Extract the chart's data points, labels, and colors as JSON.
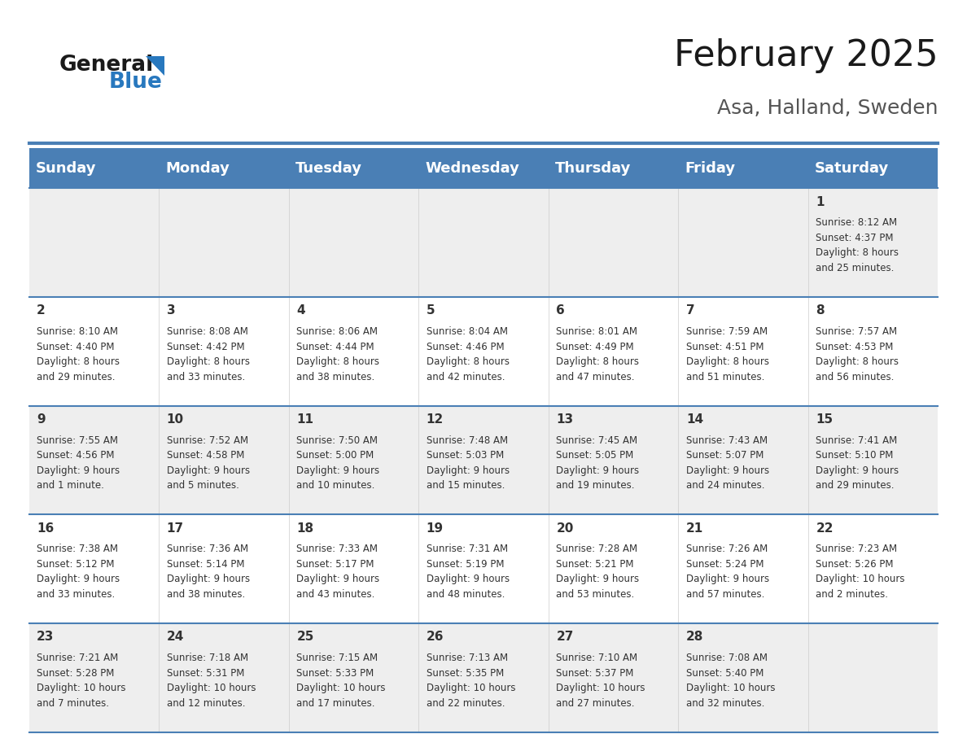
{
  "title": "February 2025",
  "subtitle": "Asa, Halland, Sweden",
  "header_bg_color": "#4a7fb5",
  "header_text_color": "#ffffff",
  "bg_color": "#ffffff",
  "row0_bg": "#eeeeee",
  "row1_bg": "#ffffff",
  "border_color": "#4a7fb5",
  "day_names": [
    "Sunday",
    "Monday",
    "Tuesday",
    "Wednesday",
    "Thursday",
    "Friday",
    "Saturday"
  ],
  "title_fontsize": 32,
  "subtitle_fontsize": 18,
  "header_fontsize": 13,
  "day_num_fontsize": 11,
  "cell_text_fontsize": 8.5,
  "calendar": [
    [
      {
        "day": null,
        "info": ""
      },
      {
        "day": null,
        "info": ""
      },
      {
        "day": null,
        "info": ""
      },
      {
        "day": null,
        "info": ""
      },
      {
        "day": null,
        "info": ""
      },
      {
        "day": null,
        "info": ""
      },
      {
        "day": 1,
        "info": "Sunrise: 8:12 AM\nSunset: 4:37 PM\nDaylight: 8 hours\nand 25 minutes."
      }
    ],
    [
      {
        "day": 2,
        "info": "Sunrise: 8:10 AM\nSunset: 4:40 PM\nDaylight: 8 hours\nand 29 minutes."
      },
      {
        "day": 3,
        "info": "Sunrise: 8:08 AM\nSunset: 4:42 PM\nDaylight: 8 hours\nand 33 minutes."
      },
      {
        "day": 4,
        "info": "Sunrise: 8:06 AM\nSunset: 4:44 PM\nDaylight: 8 hours\nand 38 minutes."
      },
      {
        "day": 5,
        "info": "Sunrise: 8:04 AM\nSunset: 4:46 PM\nDaylight: 8 hours\nand 42 minutes."
      },
      {
        "day": 6,
        "info": "Sunrise: 8:01 AM\nSunset: 4:49 PM\nDaylight: 8 hours\nand 47 minutes."
      },
      {
        "day": 7,
        "info": "Sunrise: 7:59 AM\nSunset: 4:51 PM\nDaylight: 8 hours\nand 51 minutes."
      },
      {
        "day": 8,
        "info": "Sunrise: 7:57 AM\nSunset: 4:53 PM\nDaylight: 8 hours\nand 56 minutes."
      }
    ],
    [
      {
        "day": 9,
        "info": "Sunrise: 7:55 AM\nSunset: 4:56 PM\nDaylight: 9 hours\nand 1 minute."
      },
      {
        "day": 10,
        "info": "Sunrise: 7:52 AM\nSunset: 4:58 PM\nDaylight: 9 hours\nand 5 minutes."
      },
      {
        "day": 11,
        "info": "Sunrise: 7:50 AM\nSunset: 5:00 PM\nDaylight: 9 hours\nand 10 minutes."
      },
      {
        "day": 12,
        "info": "Sunrise: 7:48 AM\nSunset: 5:03 PM\nDaylight: 9 hours\nand 15 minutes."
      },
      {
        "day": 13,
        "info": "Sunrise: 7:45 AM\nSunset: 5:05 PM\nDaylight: 9 hours\nand 19 minutes."
      },
      {
        "day": 14,
        "info": "Sunrise: 7:43 AM\nSunset: 5:07 PM\nDaylight: 9 hours\nand 24 minutes."
      },
      {
        "day": 15,
        "info": "Sunrise: 7:41 AM\nSunset: 5:10 PM\nDaylight: 9 hours\nand 29 minutes."
      }
    ],
    [
      {
        "day": 16,
        "info": "Sunrise: 7:38 AM\nSunset: 5:12 PM\nDaylight: 9 hours\nand 33 minutes."
      },
      {
        "day": 17,
        "info": "Sunrise: 7:36 AM\nSunset: 5:14 PM\nDaylight: 9 hours\nand 38 minutes."
      },
      {
        "day": 18,
        "info": "Sunrise: 7:33 AM\nSunset: 5:17 PM\nDaylight: 9 hours\nand 43 minutes."
      },
      {
        "day": 19,
        "info": "Sunrise: 7:31 AM\nSunset: 5:19 PM\nDaylight: 9 hours\nand 48 minutes."
      },
      {
        "day": 20,
        "info": "Sunrise: 7:28 AM\nSunset: 5:21 PM\nDaylight: 9 hours\nand 53 minutes."
      },
      {
        "day": 21,
        "info": "Sunrise: 7:26 AM\nSunset: 5:24 PM\nDaylight: 9 hours\nand 57 minutes."
      },
      {
        "day": 22,
        "info": "Sunrise: 7:23 AM\nSunset: 5:26 PM\nDaylight: 10 hours\nand 2 minutes."
      }
    ],
    [
      {
        "day": 23,
        "info": "Sunrise: 7:21 AM\nSunset: 5:28 PM\nDaylight: 10 hours\nand 7 minutes."
      },
      {
        "day": 24,
        "info": "Sunrise: 7:18 AM\nSunset: 5:31 PM\nDaylight: 10 hours\nand 12 minutes."
      },
      {
        "day": 25,
        "info": "Sunrise: 7:15 AM\nSunset: 5:33 PM\nDaylight: 10 hours\nand 17 minutes."
      },
      {
        "day": 26,
        "info": "Sunrise: 7:13 AM\nSunset: 5:35 PM\nDaylight: 10 hours\nand 22 minutes."
      },
      {
        "day": 27,
        "info": "Sunrise: 7:10 AM\nSunset: 5:37 PM\nDaylight: 10 hours\nand 27 minutes."
      },
      {
        "day": 28,
        "info": "Sunrise: 7:08 AM\nSunset: 5:40 PM\nDaylight: 10 hours\nand 32 minutes."
      },
      {
        "day": null,
        "info": ""
      }
    ]
  ]
}
